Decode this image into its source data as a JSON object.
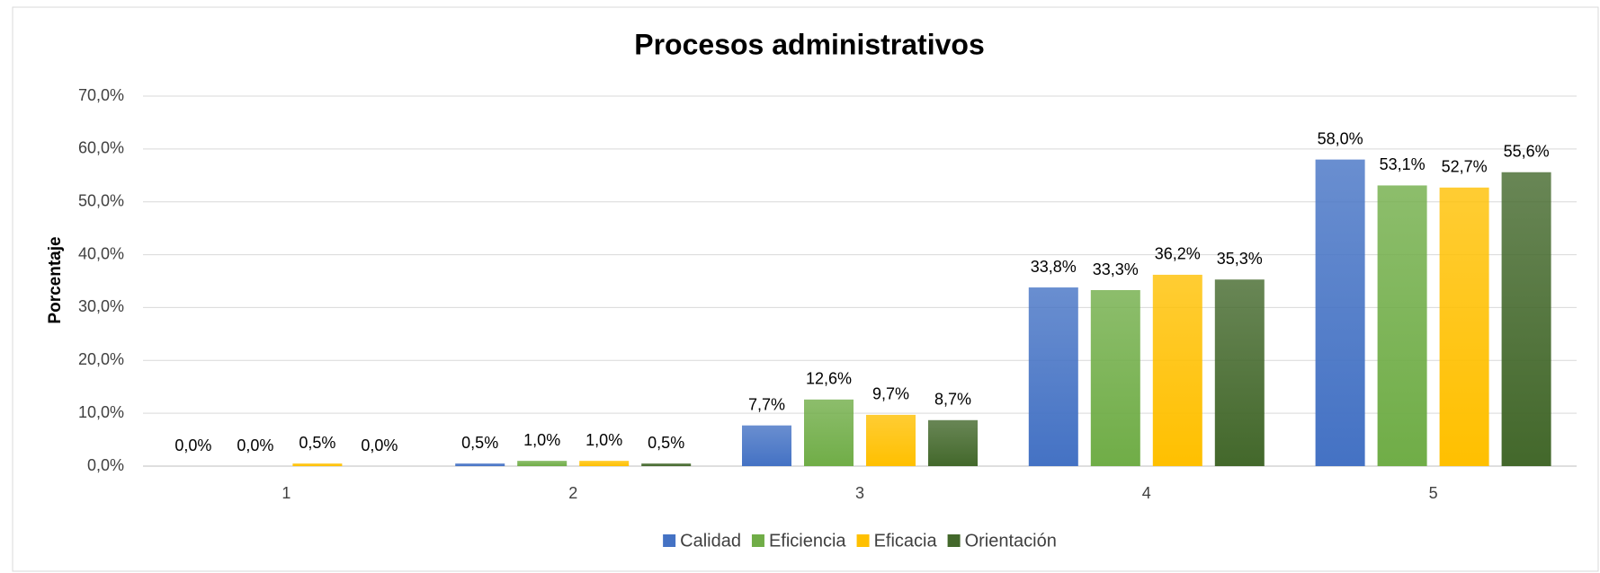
{
  "chart_data": {
    "type": "bar",
    "title": "Procesos administrativos",
    "y_label": "Porcentaje",
    "categories": [
      "1",
      "2",
      "3",
      "4",
      "5"
    ],
    "series": [
      {
        "name": "Calidad",
        "color": "#4472c4",
        "values": [
          0.0,
          0.5,
          7.7,
          33.8,
          58.0
        ],
        "value_labels": [
          "0,0%",
          "0,5%",
          "7,7%",
          "33,8%",
          "58,0%"
        ]
      },
      {
        "name": "Eficiencia",
        "color": "#70ad47",
        "values": [
          0.0,
          1.0,
          12.6,
          33.3,
          53.1
        ],
        "value_labels": [
          "0,0%",
          "1,0%",
          "12,6%",
          "33,3%",
          "53,1%"
        ]
      },
      {
        "name": "Eficacia",
        "color": "#ffc000",
        "values": [
          0.5,
          1.0,
          9.7,
          36.2,
          52.7
        ],
        "value_labels": [
          "0,5%",
          "1,0%",
          "9,7%",
          "36,2%",
          "52,7%"
        ]
      },
      {
        "name": "Orientación",
        "color": "#43682b",
        "values": [
          0.0,
          0.5,
          8.7,
          35.3,
          55.6
        ],
        "value_labels": [
          "0,0%",
          "0,5%",
          "8,7%",
          "35,3%",
          "55,6%"
        ]
      }
    ],
    "ylim": [
      0,
      70
    ],
    "yticks": [
      {
        "value": 0,
        "label": "0,0%"
      },
      {
        "value": 10,
        "label": "10,0%"
      },
      {
        "value": 20,
        "label": "20,0%"
      },
      {
        "value": 30,
        "label": "30,0%"
      },
      {
        "value": 40,
        "label": "40,0%"
      },
      {
        "value": 50,
        "label": "50,0%"
      },
      {
        "value": 60,
        "label": "60,0%"
      },
      {
        "value": 70,
        "label": "70,0%"
      }
    ],
    "grid": true,
    "legend": "bottom"
  }
}
